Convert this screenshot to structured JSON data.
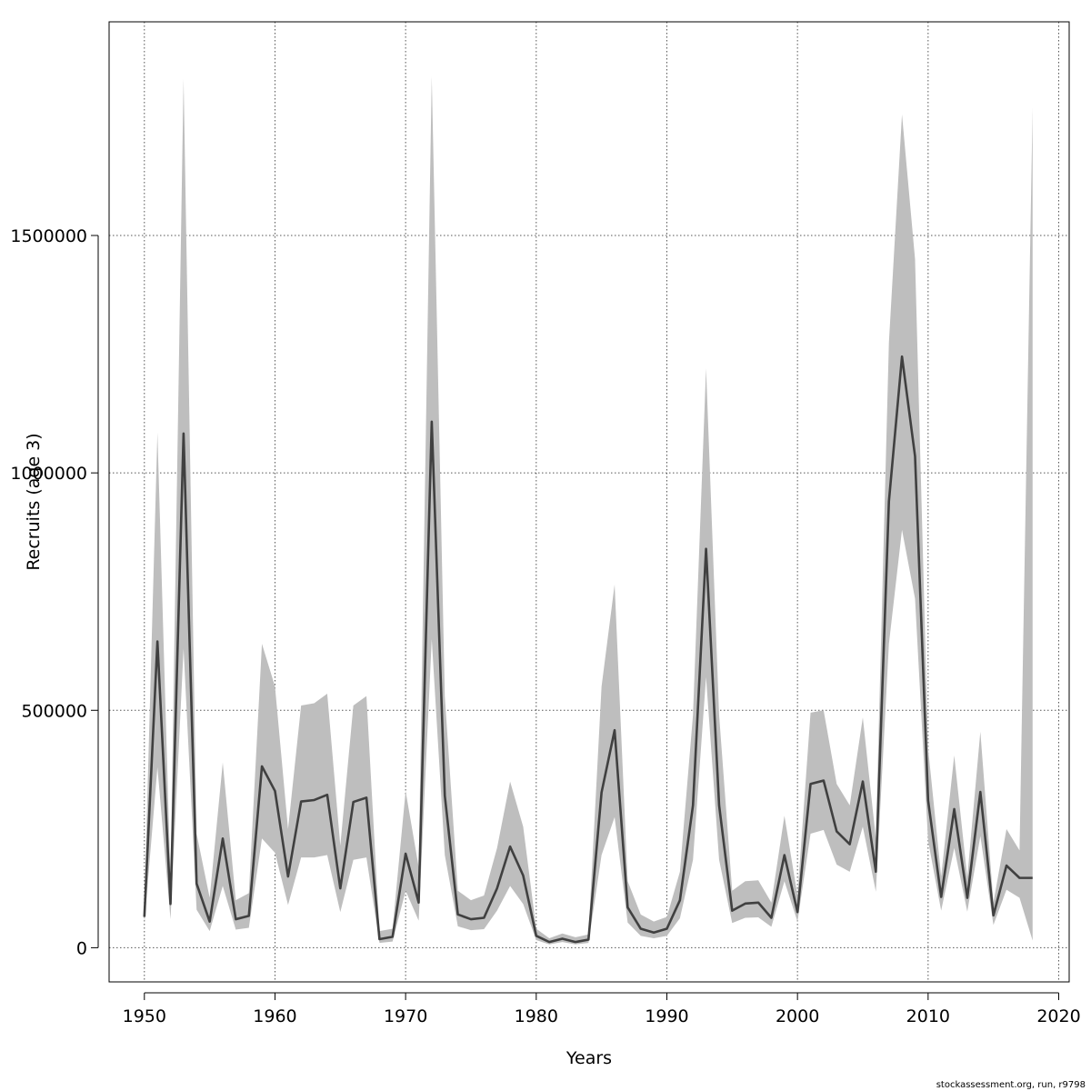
{
  "chart_data": {
    "type": "line",
    "xlabel": "Years",
    "ylabel": "Recruits (age 3)",
    "xlim": [
      1947.3,
      2020.8
    ],
    "ylim": [
      -72000,
      1950000
    ],
    "xticks": [
      1950,
      1960,
      1970,
      1980,
      1990,
      2000,
      2010,
      2020
    ],
    "yticks": [
      0,
      500000,
      1000000,
      1500000
    ],
    "grid": true,
    "colors": {
      "line": "#404040",
      "band": "#bebebe",
      "grid": "#555555",
      "frame": "#000000"
    },
    "series": [
      {
        "x": [
          1950,
          1951,
          1952,
          1953,
          1954,
          1955,
          1956,
          1957,
          1958,
          1959,
          1960,
          1961,
          1962,
          1963,
          1964,
          1965,
          1966,
          1967,
          1968,
          1969,
          1970,
          1971,
          1972,
          1973,
          1974,
          1975,
          1976,
          1977,
          1978,
          1979,
          1980,
          1981,
          1982,
          1983,
          1984,
          1985,
          1986,
          1987,
          1988,
          1989,
          1990,
          1991,
          1992,
          1993,
          1994,
          1995,
          1996,
          1997,
          1998,
          1999,
          2000,
          2001,
          2002,
          2003,
          2004,
          2005,
          2006,
          2007,
          2008,
          2009,
          2010,
          2011,
          2012,
          2013,
          2014,
          2015,
          2016,
          2017,
          2018
        ],
        "values": [
          65000,
          645000,
          92000,
          1083000,
          135000,
          55000,
          230000,
          60000,
          67000,
          382000,
          330000,
          150000,
          308000,
          311000,
          322000,
          125000,
          307000,
          316000,
          18000,
          23000,
          198000,
          95000,
          1108000,
          320000,
          70000,
          60000,
          63000,
          125000,
          213000,
          152000,
          25000,
          12000,
          19000,
          12000,
          17000,
          327000,
          458000,
          85000,
          40000,
          32000,
          40000,
          100000,
          300000,
          840000,
          300000,
          78000,
          93000,
          95000,
          63000,
          195000,
          75000,
          345000,
          352000,
          245000,
          218000,
          350000,
          160000,
          940000,
          1245000,
          1035000,
          310000,
          107000,
          292000,
          105000,
          328000,
          68000,
          173000,
          147000,
          147000
        ]
      },
      {
        "name": "",
        "lower": [
          50000,
          380000,
          60000,
          630000,
          80000,
          35000,
          130000,
          38000,
          42000,
          230000,
          200000,
          90000,
          190000,
          190000,
          195000,
          75000,
          185000,
          190000,
          10000,
          13000,
          120000,
          57000,
          650000,
          195000,
          45000,
          37000,
          39000,
          78000,
          130000,
          92000,
          16000,
          7000,
          12000,
          7000,
          10000,
          195000,
          275000,
          53000,
          25000,
          20000,
          25000,
          62000,
          185000,
          570000,
          185000,
          52000,
          63000,
          64000,
          44000,
          140000,
          55000,
          240000,
          248000,
          175000,
          160000,
          255000,
          118000,
          640000,
          880000,
          735000,
          225000,
          78000,
          210000,
          76000,
          235000,
          48000,
          122000,
          105000,
          15000
        ],
        "upper": [
          90000,
          1085000,
          145000,
          1830000,
          240000,
          105000,
          390000,
          100000,
          115000,
          640000,
          550000,
          250000,
          510000,
          515000,
          535000,
          215000,
          510000,
          530000,
          35000,
          40000,
          330000,
          170000,
          1835000,
          530000,
          120000,
          100000,
          110000,
          210000,
          350000,
          255000,
          40000,
          20000,
          30000,
          22000,
          28000,
          550000,
          765000,
          140000,
          70000,
          55000,
          65000,
          160000,
          490000,
          1220000,
          490000,
          120000,
          140000,
          142000,
          95000,
          278000,
          110000,
          495000,
          500000,
          345000,
          300000,
          485000,
          230000,
          1275000,
          1755000,
          1450000,
          420000,
          150000,
          405000,
          148000,
          455000,
          95000,
          250000,
          205000,
          1770000
        ]
      }
    ],
    "credit": "stockassessment.org, run, r9798"
  }
}
